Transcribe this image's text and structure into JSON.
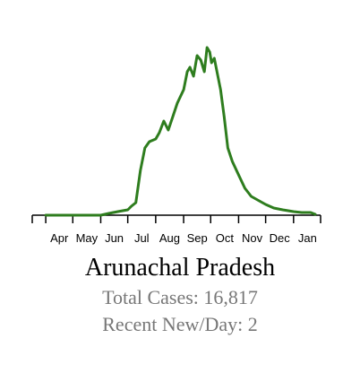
{
  "title": "Arunachal Pradesh",
  "total_cases_text": "Total Cases: 16,817",
  "recent_text": "Recent New/Day: 2",
  "chart_data": {
    "type": "line",
    "title": "Arunachal Pradesh",
    "xlabel": "",
    "ylabel": "",
    "x_ticks": [
      "Apr",
      "May",
      "Jun",
      "Jul",
      "Aug",
      "Sep",
      "Oct",
      "Nov",
      "Dec",
      "Jan"
    ],
    "ylim": [
      0,
      190
    ],
    "grid": false,
    "line_color": "#2e7d1e",
    "series": [
      {
        "name": "",
        "x": [
          "2020-04-01",
          "2020-04-15",
          "2020-05-01",
          "2020-05-15",
          "2020-06-01",
          "2020-06-10",
          "2020-06-20",
          "2020-07-01",
          "2020-07-05",
          "2020-07-10",
          "2020-07-15",
          "2020-07-20",
          "2020-07-25",
          "2020-08-01",
          "2020-08-05",
          "2020-08-10",
          "2020-08-15",
          "2020-08-20",
          "2020-08-25",
          "2020-09-01",
          "2020-09-05",
          "2020-09-08",
          "2020-09-12",
          "2020-09-16",
          "2020-09-20",
          "2020-09-24",
          "2020-09-27",
          "2020-09-30",
          "2020-10-02",
          "2020-10-05",
          "2020-10-08",
          "2020-10-12",
          "2020-10-16",
          "2020-10-20",
          "2020-10-25",
          "2020-11-01",
          "2020-11-08",
          "2020-11-15",
          "2020-11-22",
          "2020-12-01",
          "2020-12-10",
          "2020-12-20",
          "2021-01-01",
          "2021-01-10",
          "2021-01-20",
          "2021-01-25"
        ],
        "y": [
          0,
          0,
          0,
          0,
          0,
          2,
          4,
          6,
          10,
          14,
          50,
          75,
          82,
          85,
          92,
          105,
          95,
          110,
          125,
          140,
          160,
          165,
          155,
          178,
          173,
          160,
          187,
          182,
          170,
          175,
          160,
          140,
          110,
          75,
          60,
          45,
          30,
          21,
          17,
          12,
          8,
          6,
          4,
          3,
          3,
          1
        ]
      }
    ]
  }
}
